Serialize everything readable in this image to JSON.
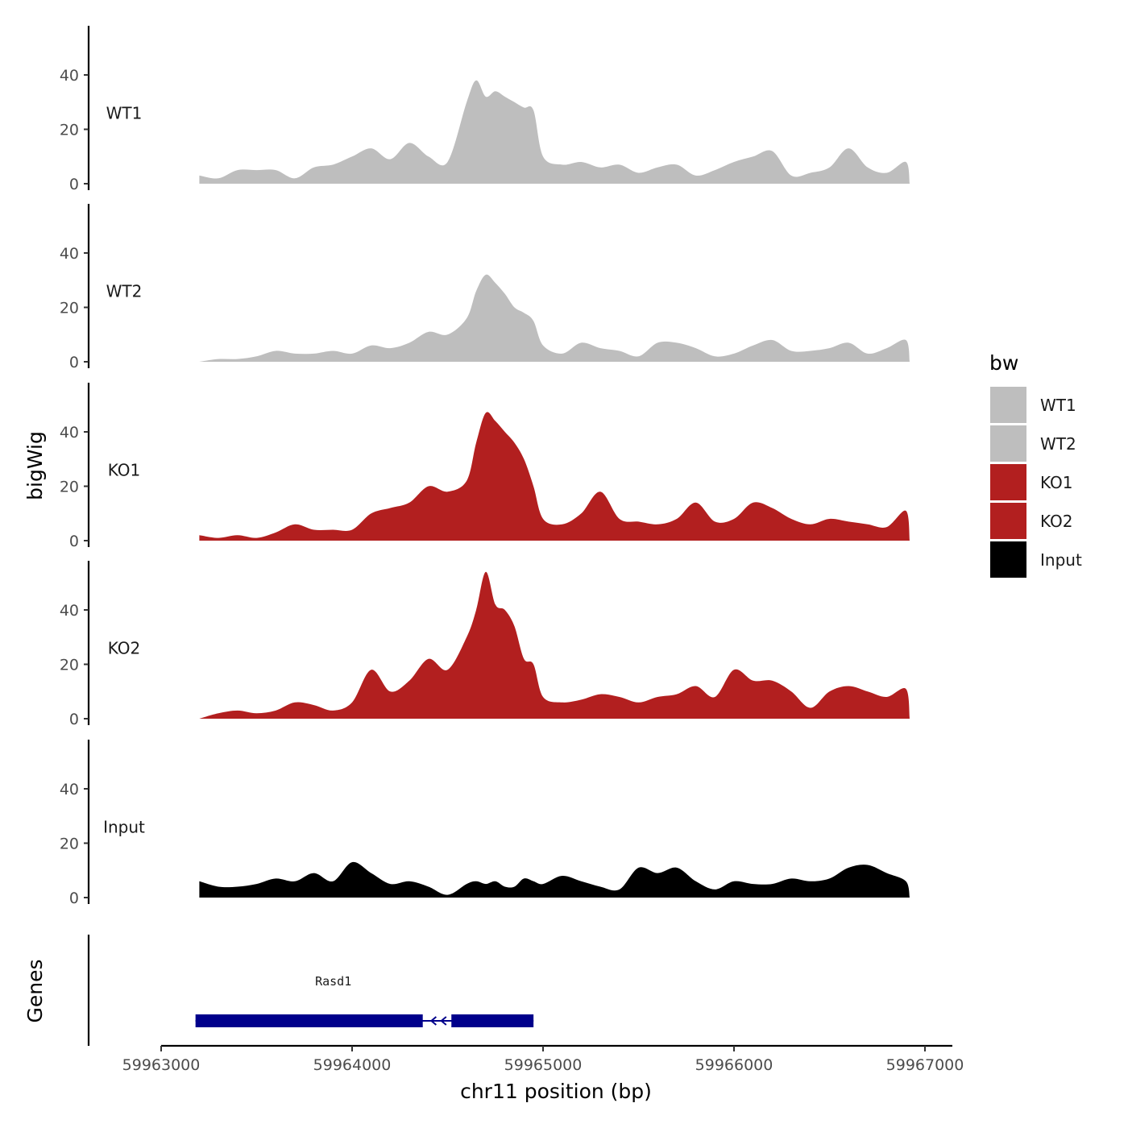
{
  "chart_data": {
    "type": "area",
    "title": "",
    "xlabel": "chr11 position (bp)",
    "ylabel": "bigWig",
    "genes_axis_label": "Genes",
    "xlim": [
      59962600,
      59967150
    ],
    "ylim": [
      0,
      58
    ],
    "x_ticks": [
      59963000,
      59964000,
      59965000,
      59966000,
      59967000
    ],
    "x_tick_labels": [
      "59963000",
      "59964000",
      "59965000",
      "59966000",
      "59967000"
    ],
    "y_ticks": [
      0,
      20,
      40
    ],
    "y_tick_labels": [
      "0",
      "20",
      "40"
    ],
    "legend": {
      "title": "bw",
      "entries": [
        {
          "label": "WT1",
          "color": "#bebebe"
        },
        {
          "label": "WT2",
          "color": "#bebebe"
        },
        {
          "label": "KO1",
          "color": "#b21f1f"
        },
        {
          "label": "KO2",
          "color": "#b21f1f"
        },
        {
          "label": "Input",
          "color": "#000000"
        }
      ]
    },
    "x": [
      59963200,
      59963300,
      59963400,
      59963500,
      59963600,
      59963700,
      59963800,
      59963900,
      59964000,
      59964100,
      59964200,
      59964300,
      59964400,
      59964500,
      59964600,
      59964650,
      59964700,
      59964750,
      59964800,
      59964850,
      59964900,
      59964950,
      59965000,
      59965100,
      59965200,
      59965300,
      59965400,
      59965500,
      59965600,
      59965700,
      59965800,
      59965900,
      59966000,
      59966100,
      59966200,
      59966300,
      59966400,
      59966500,
      59966600,
      59966700,
      59966800,
      59966900,
      59966920
    ],
    "series": [
      {
        "name": "WT1",
        "color": "#bebebe",
        "values": [
          3,
          2,
          5,
          5,
          5,
          2,
          6,
          7,
          10,
          13,
          9,
          15,
          10,
          8,
          30,
          38,
          32,
          34,
          32,
          30,
          28,
          27,
          10,
          7,
          8,
          6,
          7,
          4,
          6,
          7,
          3,
          5,
          8,
          10,
          12,
          3,
          4,
          6,
          13,
          6,
          4,
          8,
          0
        ]
      },
      {
        "name": "WT2",
        "color": "#bebebe",
        "values": [
          0,
          1,
          1,
          2,
          4,
          3,
          3,
          4,
          3,
          6,
          5,
          7,
          11,
          10,
          16,
          26,
          32,
          29,
          25,
          20,
          18,
          15,
          6,
          3,
          7,
          5,
          4,
          2,
          7,
          7,
          5,
          2,
          3,
          6,
          8,
          4,
          4,
          5,
          7,
          3,
          5,
          8,
          0
        ]
      },
      {
        "name": "KO1",
        "color": "#b21f1f",
        "values": [
          2,
          1,
          2,
          1,
          3,
          6,
          4,
          4,
          4,
          10,
          12,
          14,
          20,
          18,
          22,
          36,
          47,
          44,
          40,
          36,
          30,
          20,
          8,
          6,
          10,
          18,
          8,
          7,
          6,
          8,
          14,
          7,
          8,
          14,
          12,
          8,
          6,
          8,
          7,
          6,
          5,
          11,
          0
        ]
      },
      {
        "name": "KO2",
        "color": "#b21f1f",
        "values": [
          0,
          2,
          3,
          2,
          3,
          6,
          5,
          3,
          6,
          18,
          10,
          14,
          22,
          18,
          30,
          40,
          54,
          42,
          40,
          34,
          22,
          20,
          8,
          6,
          7,
          9,
          8,
          6,
          8,
          9,
          12,
          8,
          18,
          14,
          14,
          10,
          4,
          10,
          12,
          10,
          8,
          11,
          0
        ]
      },
      {
        "name": "Input",
        "color": "#000000",
        "values": [
          6,
          4,
          4,
          5,
          7,
          6,
          9,
          6,
          13,
          9,
          5,
          6,
          4,
          1,
          5,
          6,
          5,
          6,
          4,
          4,
          7,
          6,
          5,
          8,
          6,
          4,
          3,
          11,
          9,
          11,
          6,
          3,
          6,
          5,
          5,
          7,
          6,
          7,
          11,
          12,
          9,
          6,
          0
        ]
      }
    ],
    "genes": [
      {
        "name": "Rasd1",
        "start": 59963180,
        "end": 59964950,
        "strand": "-",
        "exons": [
          [
            59963180,
            59964370
          ],
          [
            59964520,
            59964950
          ]
        ]
      }
    ]
  }
}
